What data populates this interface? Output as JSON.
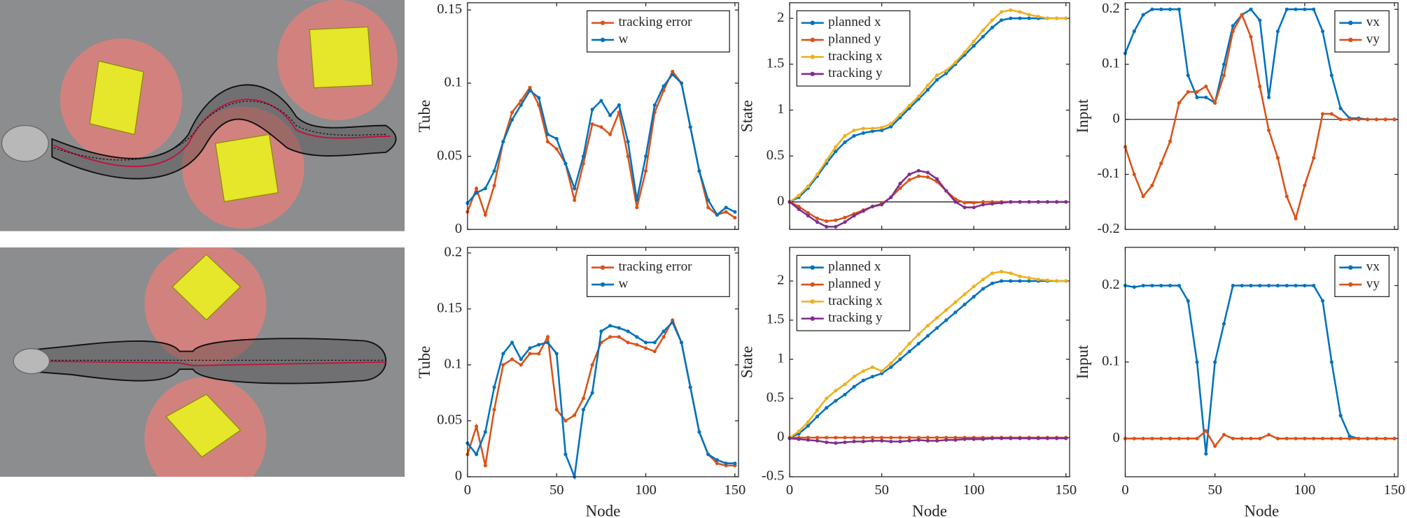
{
  "chart_data": [
    {
      "type": "line",
      "ylabel": "Tube",
      "legend": "upper right",
      "zero_line": false,
      "show_xtick_labels": false,
      "x": [
        0,
        5,
        10,
        15,
        20,
        25,
        30,
        35,
        40,
        45,
        50,
        55,
        60,
        65,
        70,
        75,
        80,
        85,
        90,
        95,
        100,
        105,
        110,
        115,
        120,
        125,
        130,
        135,
        140,
        145,
        150
      ],
      "xlim": [
        0,
        152
      ],
      "xticks": [
        0,
        50,
        100,
        150
      ],
      "ylim": [
        0,
        0.155
      ],
      "yticks": [
        0,
        0.05,
        0.1,
        0.15
      ],
      "series": [
        {
          "name": "tracking error",
          "color": "#d95319",
          "values": [
            0.012,
            0.028,
            0.01,
            0.03,
            0.06,
            0.08,
            0.088,
            0.097,
            0.085,
            0.06,
            0.055,
            0.045,
            0.02,
            0.045,
            0.072,
            0.07,
            0.065,
            0.08,
            0.05,
            0.015,
            0.04,
            0.08,
            0.095,
            0.108,
            0.1,
            0.07,
            0.04,
            0.015,
            0.01,
            0.012,
            0.008
          ]
        },
        {
          "name": "w",
          "color": "#0072bd",
          "values": [
            0.018,
            0.025,
            0.028,
            0.04,
            0.06,
            0.075,
            0.085,
            0.095,
            0.09,
            0.065,
            0.062,
            0.045,
            0.028,
            0.05,
            0.082,
            0.088,
            0.078,
            0.085,
            0.06,
            0.02,
            0.05,
            0.085,
            0.098,
            0.106,
            0.1,
            0.07,
            0.04,
            0.02,
            0.01,
            0.015,
            0.012
          ]
        }
      ]
    },
    {
      "type": "line",
      "ylabel": "State",
      "legend": "upper left",
      "zero_line": true,
      "show_xtick_labels": false,
      "x": [
        0,
        5,
        10,
        15,
        20,
        25,
        30,
        35,
        40,
        45,
        50,
        55,
        60,
        65,
        70,
        75,
        80,
        85,
        90,
        95,
        100,
        105,
        110,
        115,
        120,
        125,
        130,
        135,
        140,
        145,
        150
      ],
      "xlim": [
        0,
        152
      ],
      "xticks": [
        0,
        50,
        100,
        150
      ],
      "ylim": [
        -0.3,
        2.17
      ],
      "yticks": [
        0,
        0.5,
        1,
        1.5,
        2
      ],
      "series": [
        {
          "name": "planned x",
          "color": "#0072bd",
          "values": [
            0,
            0.05,
            0.15,
            0.28,
            0.42,
            0.55,
            0.65,
            0.72,
            0.75,
            0.77,
            0.78,
            0.82,
            0.92,
            1.02,
            1.12,
            1.22,
            1.33,
            1.4,
            1.5,
            1.6,
            1.7,
            1.8,
            1.9,
            1.98,
            2,
            2,
            2,
            2,
            2,
            2,
            2
          ]
        },
        {
          "name": "planned y",
          "color": "#d95319",
          "values": [
            0,
            -0.05,
            -0.12,
            -0.18,
            -0.21,
            -0.2,
            -0.17,
            -0.13,
            -0.09,
            -0.05,
            -0.02,
            0.05,
            0.15,
            0.24,
            0.28,
            0.27,
            0.22,
            0.12,
            0.03,
            -0.01,
            -0.01,
            0,
            0,
            0,
            0,
            0,
            0,
            0,
            0,
            0,
            0
          ]
        },
        {
          "name": "tracking x",
          "color": "#edb120",
          "values": [
            0,
            0.07,
            0.17,
            0.3,
            0.45,
            0.6,
            0.72,
            0.78,
            0.8,
            0.8,
            0.81,
            0.85,
            0.95,
            1.05,
            1.15,
            1.27,
            1.38,
            1.43,
            1.52,
            1.63,
            1.75,
            1.87,
            1.98,
            2.07,
            2.09,
            2.07,
            2.04,
            2.02,
            2,
            2,
            2
          ]
        },
        {
          "name": "tracking y",
          "color": "#7e2f8e",
          "values": [
            0,
            -0.08,
            -0.15,
            -0.22,
            -0.27,
            -0.27,
            -0.22,
            -0.15,
            -0.1,
            -0.05,
            -0.03,
            0.05,
            0.2,
            0.3,
            0.34,
            0.32,
            0.25,
            0.12,
            0,
            -0.06,
            -0.06,
            -0.03,
            -0.02,
            -0.01,
            0,
            0,
            0,
            0,
            0,
            0,
            0
          ]
        }
      ]
    },
    {
      "type": "line",
      "ylabel": "Input",
      "legend": "upper right",
      "zero_line": true,
      "show_xtick_labels": false,
      "x": [
        0,
        5,
        10,
        15,
        20,
        25,
        30,
        35,
        40,
        45,
        50,
        55,
        60,
        65,
        70,
        75,
        80,
        85,
        90,
        95,
        100,
        105,
        110,
        115,
        120,
        125,
        130,
        135,
        140,
        145,
        150
      ],
      "xlim": [
        0,
        152
      ],
      "xticks": [
        0,
        50,
        100,
        150
      ],
      "ylim": [
        -0.2,
        0.212
      ],
      "yticks": [
        -0.2,
        -0.1,
        0,
        0.1,
        0.2
      ],
      "series": [
        {
          "name": "vx",
          "color": "#0072bd",
          "values": [
            0.12,
            0.16,
            0.19,
            0.2,
            0.2,
            0.2,
            0.2,
            0.08,
            0.04,
            0.04,
            0.03,
            0.1,
            0.17,
            0.19,
            0.2,
            0.18,
            0.04,
            0.16,
            0.2,
            0.2,
            0.2,
            0.2,
            0.16,
            0.08,
            0.02,
            0.002,
            0.002,
            0,
            0,
            0,
            0
          ]
        },
        {
          "name": "vy",
          "color": "#d95319",
          "values": [
            -0.05,
            -0.1,
            -0.14,
            -0.12,
            -0.08,
            -0.04,
            0.03,
            0.05,
            0.05,
            0.06,
            0.03,
            0.08,
            0.16,
            0.19,
            0.15,
            0.06,
            -0.02,
            -0.07,
            -0.14,
            -0.18,
            -0.12,
            -0.07,
            0.01,
            0.01,
            0,
            0,
            0,
            0,
            0,
            0,
            0
          ]
        }
      ]
    },
    {
      "type": "line",
      "ylabel": "Tube",
      "xlabel": "Node",
      "legend": "upper right",
      "zero_line": false,
      "show_xtick_labels": true,
      "x": [
        0,
        5,
        10,
        15,
        20,
        25,
        30,
        35,
        40,
        45,
        50,
        55,
        60,
        65,
        70,
        75,
        80,
        85,
        90,
        95,
        100,
        105,
        110,
        115,
        120,
        125,
        130,
        135,
        140,
        145,
        150
      ],
      "xlim": [
        0,
        152
      ],
      "xticks": [
        0,
        50,
        100,
        150
      ],
      "ylim": [
        0,
        0.205
      ],
      "yticks": [
        0,
        0.05,
        0.1,
        0.15,
        0.2
      ],
      "series": [
        {
          "name": "tracking error",
          "color": "#d95319",
          "values": [
            0.02,
            0.045,
            0.01,
            0.06,
            0.1,
            0.105,
            0.1,
            0.11,
            0.11,
            0.125,
            0.06,
            0.05,
            0.055,
            0.07,
            0.1,
            0.12,
            0.125,
            0.125,
            0.12,
            0.118,
            0.115,
            0.112,
            0.125,
            0.14,
            0.12,
            0.08,
            0.04,
            0.02,
            0.012,
            0.01,
            0.01
          ]
        },
        {
          "name": "w",
          "color": "#0072bd",
          "values": [
            0.03,
            0.02,
            0.04,
            0.08,
            0.11,
            0.12,
            0.105,
            0.115,
            0.118,
            0.12,
            0.11,
            0.02,
            0,
            0.06,
            0.075,
            0.13,
            0.135,
            0.133,
            0.13,
            0.125,
            0.12,
            0.12,
            0.13,
            0.138,
            0.12,
            0.08,
            0.04,
            0.02,
            0.015,
            0.012,
            0.012
          ]
        }
      ]
    },
    {
      "type": "line",
      "ylabel": "State",
      "xlabel": "Node",
      "legend": "upper left",
      "zero_line": true,
      "show_xtick_labels": true,
      "x": [
        0,
        5,
        10,
        15,
        20,
        25,
        30,
        35,
        40,
        45,
        50,
        55,
        60,
        65,
        70,
        75,
        80,
        85,
        90,
        95,
        100,
        105,
        110,
        115,
        120,
        125,
        130,
        135,
        140,
        145,
        150
      ],
      "xlim": [
        0,
        152
      ],
      "xticks": [
        0,
        50,
        100,
        150
      ],
      "ylim": [
        -0.5,
        2.43
      ],
      "yticks": [
        -0.5,
        0,
        0.5,
        1,
        1.5,
        2
      ],
      "series": [
        {
          "name": "planned x",
          "color": "#0072bd",
          "values": [
            0,
            0.05,
            0.15,
            0.27,
            0.38,
            0.47,
            0.55,
            0.65,
            0.73,
            0.78,
            0.82,
            0.9,
            1,
            1.1,
            1.2,
            1.3,
            1.4,
            1.5,
            1.6,
            1.7,
            1.8,
            1.9,
            1.97,
            2,
            2,
            2,
            2,
            2,
            2,
            2,
            2
          ]
        },
        {
          "name": "planned y",
          "color": "#d95319",
          "values": [
            0,
            0,
            0,
            0,
            0,
            0,
            0,
            0,
            0,
            0,
            0,
            0,
            0,
            0,
            0,
            0,
            0,
            0,
            0,
            0,
            0,
            0,
            0,
            0,
            0,
            0,
            0,
            0,
            0,
            0,
            0
          ]
        },
        {
          "name": "tracking x",
          "color": "#edb120",
          "values": [
            0,
            0.08,
            0.2,
            0.35,
            0.5,
            0.6,
            0.68,
            0.78,
            0.85,
            0.9,
            0.85,
            0.95,
            1.07,
            1.2,
            1.32,
            1.43,
            1.53,
            1.63,
            1.73,
            1.83,
            1.93,
            2.02,
            2.1,
            2.12,
            2.1,
            2.06,
            2.04,
            2.02,
            2.01,
            2,
            2
          ]
        },
        {
          "name": "tracking y",
          "color": "#7e2f8e",
          "values": [
            -0.01,
            -0.02,
            -0.03,
            -0.04,
            -0.06,
            -0.07,
            -0.06,
            -0.05,
            -0.05,
            -0.04,
            -0.04,
            -0.05,
            -0.05,
            -0.04,
            -0.03,
            -0.04,
            -0.04,
            -0.03,
            -0.03,
            -0.02,
            -0.02,
            -0.02,
            -0.01,
            -0.01,
            -0.01,
            -0.01,
            -0.01,
            -0.01,
            -0.01,
            -0.01,
            -0.01
          ]
        }
      ]
    },
    {
      "type": "line",
      "ylabel": "Input",
      "xlabel": "Node",
      "legend": "upper right",
      "zero_line": false,
      "show_xtick_labels": true,
      "x": [
        0,
        5,
        10,
        15,
        20,
        25,
        30,
        35,
        40,
        45,
        50,
        55,
        60,
        65,
        70,
        75,
        80,
        85,
        90,
        95,
        100,
        105,
        110,
        115,
        120,
        125,
        130,
        135,
        140,
        145,
        150
      ],
      "xlim": [
        0,
        152
      ],
      "xticks": [
        0,
        50,
        100,
        150
      ],
      "ylim": [
        -0.05,
        0.25
      ],
      "yticks": [
        0,
        0.1,
        0.2
      ],
      "series": [
        {
          "name": "vx",
          "color": "#0072bd",
          "values": [
            0.2,
            0.198,
            0.2,
            0.2,
            0.2,
            0.2,
            0.2,
            0.18,
            0.1,
            -0.02,
            0.1,
            0.15,
            0.2,
            0.2,
            0.2,
            0.2,
            0.2,
            0.2,
            0.2,
            0.2,
            0.2,
            0.2,
            0.18,
            0.1,
            0.03,
            0.003,
            0,
            0,
            0,
            0,
            0
          ]
        },
        {
          "name": "vy",
          "color": "#d95319",
          "values": [
            0,
            0,
            0,
            0,
            0,
            0,
            0,
            0,
            0,
            0.01,
            -0.01,
            0.005,
            0,
            0,
            0,
            0,
            0.005,
            0,
            0,
            0,
            0,
            0,
            0,
            0,
            0,
            0,
            0,
            0,
            0,
            0,
            0
          ]
        }
      ]
    }
  ]
}
